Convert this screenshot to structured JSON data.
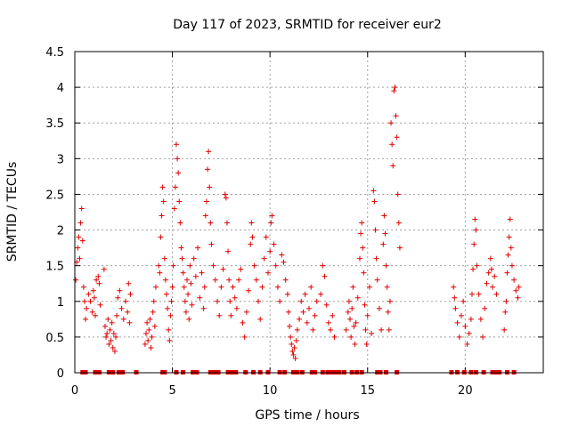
{
  "chart_data": {
    "type": "scatter",
    "title": "Day 117 of 2023, SRMTID for receiver eur2",
    "xlabel": "GPS time / hours",
    "ylabel": "SRMTID / TECUs",
    "xlim": [
      0,
      24
    ],
    "ylim": [
      0,
      4.5
    ],
    "x_ticks": [
      0,
      5,
      10,
      15,
      20
    ],
    "x_tick_labels": [
      "0",
      "5",
      "10",
      "15",
      "20"
    ],
    "y_ticks": [
      0,
      0.5,
      1,
      1.5,
      2,
      2.5,
      3,
      3.5,
      4,
      4.5
    ],
    "y_tick_labels": [
      "0",
      "0.5",
      "1",
      "1.5",
      "2",
      "2.5",
      "3",
      "3.5",
      "4",
      "4.5"
    ],
    "grid": true,
    "marker": "+",
    "color": "#e00000",
    "series": [
      {
        "name": "SRMTID",
        "points": [
          [
            0.05,
            1.3
          ],
          [
            0.1,
            1.55
          ],
          [
            0.15,
            1.75
          ],
          [
            0.2,
            1.9
          ],
          [
            0.25,
            1.6
          ],
          [
            0.3,
            2.1
          ],
          [
            0.35,
            2.3
          ],
          [
            0.4,
            1.85
          ],
          [
            0.45,
            1.2
          ],
          [
            0.5,
            1.0
          ],
          [
            0.55,
            0.75
          ],
          [
            0.6,
            0.9
          ],
          [
            0.7,
            1.1
          ],
          [
            0.8,
            1.0
          ],
          [
            0.9,
            0.85
          ],
          [
            0.95,
            1.15
          ],
          [
            1.0,
            1.05
          ],
          [
            1.05,
            0.8
          ],
          [
            1.1,
            1.3
          ],
          [
            1.2,
            1.35
          ],
          [
            1.25,
            1.25
          ],
          [
            1.3,
            0.95
          ],
          [
            1.5,
            1.45
          ],
          [
            1.55,
            0.65
          ],
          [
            1.6,
            0.5
          ],
          [
            1.65,
            0.55
          ],
          [
            1.7,
            0.75
          ],
          [
            1.75,
            0.4
          ],
          [
            1.8,
            0.6
          ],
          [
            1.85,
            0.45
          ],
          [
            1.9,
            0.7
          ],
          [
            1.95,
            0.35
          ],
          [
            2.0,
            0.55
          ],
          [
            2.05,
            0.3
          ],
          [
            2.1,
            0.5
          ],
          [
            2.15,
            0.8
          ],
          [
            2.2,
            1.05
          ],
          [
            2.3,
            1.15
          ],
          [
            2.4,
            0.9
          ],
          [
            2.5,
            0.75
          ],
          [
            2.6,
            1.0
          ],
          [
            2.7,
            0.85
          ],
          [
            2.75,
            1.25
          ],
          [
            2.8,
            0.7
          ],
          [
            2.85,
            1.1
          ],
          [
            3.6,
            0.4
          ],
          [
            3.65,
            0.55
          ],
          [
            3.7,
            0.7
          ],
          [
            3.75,
            0.45
          ],
          [
            3.8,
            0.6
          ],
          [
            3.85,
            0.75
          ],
          [
            3.9,
            0.35
          ],
          [
            3.95,
            0.5
          ],
          [
            4.0,
            0.85
          ],
          [
            4.05,
            1.0
          ],
          [
            4.1,
            0.65
          ],
          [
            4.15,
            1.2
          ],
          [
            4.3,
            1.5
          ],
          [
            4.35,
            1.4
          ],
          [
            4.4,
            1.9
          ],
          [
            4.45,
            2.2
          ],
          [
            4.5,
            2.6
          ],
          [
            4.55,
            2.4
          ],
          [
            4.6,
            1.6
          ],
          [
            4.65,
            1.3
          ],
          [
            4.7,
            1.1
          ],
          [
            4.75,
            0.9
          ],
          [
            4.8,
            0.6
          ],
          [
            4.85,
            0.45
          ],
          [
            4.9,
            0.8
          ],
          [
            4.95,
            1.0
          ],
          [
            5.0,
            1.2
          ],
          [
            5.05,
            1.5
          ],
          [
            5.1,
            2.3
          ],
          [
            5.15,
            2.6
          ],
          [
            5.2,
            3.2
          ],
          [
            5.25,
            3.0
          ],
          [
            5.3,
            2.8
          ],
          [
            5.35,
            2.4
          ],
          [
            5.4,
            2.1
          ],
          [
            5.45,
            1.75
          ],
          [
            5.5,
            1.6
          ],
          [
            5.55,
            1.4
          ],
          [
            5.6,
            1.2
          ],
          [
            5.65,
            1.0
          ],
          [
            5.7,
            0.85
          ],
          [
            5.75,
            1.3
          ],
          [
            5.8,
            1.1
          ],
          [
            5.85,
            0.75
          ],
          [
            5.9,
            1.5
          ],
          [
            5.95,
            1.25
          ],
          [
            6.0,
            0.95
          ],
          [
            6.1,
            1.6
          ],
          [
            6.2,
            1.35
          ],
          [
            6.3,
            1.75
          ],
          [
            6.4,
            1.05
          ],
          [
            6.5,
            1.4
          ],
          [
            6.6,
            0.9
          ],
          [
            6.65,
            1.2
          ],
          [
            6.7,
            2.2
          ],
          [
            6.75,
            2.4
          ],
          [
            6.8,
            2.85
          ],
          [
            6.85,
            3.1
          ],
          [
            6.9,
            2.6
          ],
          [
            6.95,
            2.1
          ],
          [
            7.0,
            1.8
          ],
          [
            7.1,
            1.5
          ],
          [
            7.2,
            1.3
          ],
          [
            7.3,
            1.0
          ],
          [
            7.4,
            0.8
          ],
          [
            7.5,
            1.2
          ],
          [
            7.6,
            1.45
          ],
          [
            7.7,
            2.5
          ],
          [
            7.75,
            2.45
          ],
          [
            7.8,
            2.1
          ],
          [
            7.85,
            1.7
          ],
          [
            7.9,
            1.3
          ],
          [
            7.95,
            1.0
          ],
          [
            8.0,
            0.8
          ],
          [
            8.1,
            1.2
          ],
          [
            8.2,
            1.05
          ],
          [
            8.3,
            0.9
          ],
          [
            8.4,
            1.3
          ],
          [
            8.5,
            1.45
          ],
          [
            8.6,
            0.7
          ],
          [
            8.7,
            0.5
          ],
          [
            8.8,
            0.85
          ],
          [
            8.9,
            1.15
          ],
          [
            9.0,
            1.8
          ],
          [
            9.05,
            2.1
          ],
          [
            9.1,
            1.9
          ],
          [
            9.2,
            1.5
          ],
          [
            9.3,
            1.3
          ],
          [
            9.4,
            1.0
          ],
          [
            9.5,
            0.75
          ],
          [
            9.6,
            1.2
          ],
          [
            9.7,
            1.6
          ],
          [
            9.8,
            1.9
          ],
          [
            9.9,
            1.4
          ],
          [
            10.0,
            1.7
          ],
          [
            10.05,
            2.1
          ],
          [
            10.1,
            2.2
          ],
          [
            10.2,
            1.8
          ],
          [
            10.3,
            1.5
          ],
          [
            10.4,
            1.2
          ],
          [
            10.5,
            1.0
          ],
          [
            10.6,
            1.65
          ],
          [
            10.7,
            1.55
          ],
          [
            10.8,
            1.3
          ],
          [
            10.9,
            1.1
          ],
          [
            10.95,
            0.85
          ],
          [
            11.0,
            0.65
          ],
          [
            11.05,
            0.5
          ],
          [
            11.1,
            0.4
          ],
          [
            11.15,
            0.3
          ],
          [
            11.2,
            0.25
          ],
          [
            11.25,
            0.35
          ],
          [
            11.3,
            0.2
          ],
          [
            11.35,
            0.45
          ],
          [
            11.4,
            0.6
          ],
          [
            11.5,
            0.75
          ],
          [
            11.6,
            1.0
          ],
          [
            11.7,
            0.85
          ],
          [
            11.8,
            1.1
          ],
          [
            11.9,
            0.7
          ],
          [
            12.0,
            0.9
          ],
          [
            12.1,
            1.2
          ],
          [
            12.2,
            0.6
          ],
          [
            12.3,
            0.8
          ],
          [
            12.4,
            1.0
          ],
          [
            12.6,
            1.1
          ],
          [
            12.7,
            1.5
          ],
          [
            12.8,
            1.35
          ],
          [
            12.9,
            0.95
          ],
          [
            13.0,
            0.7
          ],
          [
            13.1,
            0.6
          ],
          [
            13.2,
            0.8
          ],
          [
            13.3,
            0.5
          ],
          [
            13.9,
            0.6
          ],
          [
            14.0,
            0.85
          ],
          [
            14.05,
            1.0
          ],
          [
            14.1,
            0.75
          ],
          [
            14.15,
            0.5
          ],
          [
            14.2,
            0.9
          ],
          [
            14.25,
            1.2
          ],
          [
            14.3,
            0.65
          ],
          [
            14.35,
            0.4
          ],
          [
            14.4,
            0.7
          ],
          [
            14.5,
            1.05
          ],
          [
            14.6,
            1.6
          ],
          [
            14.65,
            1.95
          ],
          [
            14.7,
            2.1
          ],
          [
            14.75,
            1.75
          ],
          [
            14.8,
            1.4
          ],
          [
            14.85,
            0.95
          ],
          [
            14.9,
            0.6
          ],
          [
            14.95,
            0.4
          ],
          [
            15.0,
            0.8
          ],
          [
            15.1,
            1.2
          ],
          [
            15.2,
            0.55
          ],
          [
            15.3,
            2.55
          ],
          [
            15.35,
            2.4
          ],
          [
            15.4,
            2.0
          ],
          [
            15.45,
            1.6
          ],
          [
            15.5,
            1.3
          ],
          [
            15.6,
            0.9
          ],
          [
            15.7,
            0.6
          ],
          [
            15.8,
            1.8
          ],
          [
            15.85,
            2.2
          ],
          [
            15.9,
            1.95
          ],
          [
            15.95,
            1.5
          ],
          [
            16.0,
            1.2
          ],
          [
            16.05,
            0.85
          ],
          [
            16.1,
            0.6
          ],
          [
            16.15,
            1.0
          ],
          [
            16.2,
            3.5
          ],
          [
            16.25,
            3.2
          ],
          [
            16.3,
            2.9
          ],
          [
            16.35,
            3.95
          ],
          [
            16.4,
            4.0
          ],
          [
            16.45,
            3.6
          ],
          [
            16.5,
            3.3
          ],
          [
            16.55,
            2.5
          ],
          [
            16.6,
            2.1
          ],
          [
            16.65,
            1.75
          ],
          [
            19.4,
            1.2
          ],
          [
            19.45,
            1.05
          ],
          [
            19.5,
            0.9
          ],
          [
            19.6,
            0.7
          ],
          [
            19.7,
            0.5
          ],
          [
            19.8,
            0.8
          ],
          [
            19.9,
            1.0
          ],
          [
            20.0,
            0.65
          ],
          [
            20.1,
            0.4
          ],
          [
            20.2,
            0.55
          ],
          [
            20.3,
            0.75
          ],
          [
            20.35,
            1.1
          ],
          [
            20.4,
            1.45
          ],
          [
            20.45,
            1.8
          ],
          [
            20.5,
            2.15
          ],
          [
            20.55,
            2.0
          ],
          [
            20.6,
            1.5
          ],
          [
            20.7,
            1.1
          ],
          [
            20.8,
            0.75
          ],
          [
            20.9,
            0.5
          ],
          [
            21.0,
            0.9
          ],
          [
            21.1,
            1.25
          ],
          [
            21.2,
            1.4
          ],
          [
            21.3,
            1.6
          ],
          [
            21.35,
            1.45
          ],
          [
            21.4,
            1.2
          ],
          [
            21.5,
            1.35
          ],
          [
            21.6,
            1.1
          ],
          [
            22.0,
            0.6
          ],
          [
            22.05,
            0.85
          ],
          [
            22.1,
            1.0
          ],
          [
            22.15,
            1.4
          ],
          [
            22.2,
            1.65
          ],
          [
            22.25,
            1.9
          ],
          [
            22.3,
            2.15
          ],
          [
            22.35,
            1.75
          ],
          [
            22.4,
            1.5
          ],
          [
            22.5,
            1.3
          ],
          [
            22.6,
            1.15
          ],
          [
            22.7,
            1.05
          ],
          [
            22.75,
            1.2
          ]
        ]
      }
    ],
    "zero_markers_x": [
      0.4,
      0.55,
      1.05,
      1.25,
      1.75,
      1.95,
      2.25,
      2.45,
      3.15,
      4.5,
      4.6,
      5.2,
      5.55,
      6.05,
      6.25,
      6.95,
      7.15,
      7.35,
      7.85,
      8.05,
      8.25,
      8.75,
      9.15,
      9.5,
      9.9,
      10.5,
      10.75,
      11.2,
      11.4,
      11.65,
      12.15,
      12.3,
      12.7,
      12.95,
      13.15,
      13.35,
      13.55,
      13.8,
      14.2,
      14.45,
      14.7,
      15.5,
      15.65,
      15.95,
      16.5,
      19.3,
      19.6,
      19.95,
      20.3,
      20.55,
      20.95,
      21.4,
      21.55,
      21.75,
      22.15,
      22.5
    ]
  }
}
